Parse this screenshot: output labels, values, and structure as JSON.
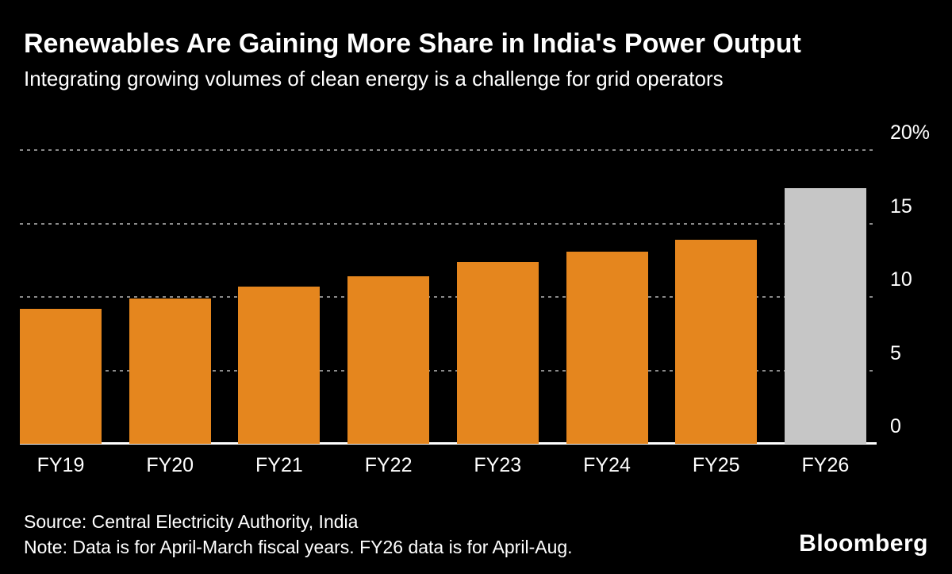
{
  "header": {
    "title": "Renewables Are Gaining More Share in India's Power Output",
    "subtitle": "Integrating growing volumes of clean energy is a challenge for grid operators"
  },
  "footer": {
    "source": "Source: Central Electricity Authority, India",
    "note": "Note: Data is for April-March fiscal years. FY26 data is for April-Aug.",
    "brand": "Bloomberg"
  },
  "colors": {
    "background": "#000000",
    "bar_orange": "#E5861E",
    "bar_gray": "#C6C6C6",
    "gridline": "#8A8A8A",
    "baseline": "#FFFFFF",
    "text": "#FFFFFF"
  },
  "chart_data": {
    "type": "bar",
    "title": "Renewables Are Gaining More Share in India's Power Output",
    "subtitle": "Integrating growing volumes of clean energy is a challenge for grid operators",
    "categories": [
      "FY19",
      "FY20",
      "FY21",
      "FY22",
      "FY23",
      "FY24",
      "FY25",
      "FY26"
    ],
    "values": [
      9.2,
      9.9,
      10.7,
      11.4,
      12.4,
      13.1,
      13.9,
      17.4
    ],
    "bar_colors": [
      "#E5861E",
      "#E5861E",
      "#E5861E",
      "#E5861E",
      "#E5861E",
      "#E5861E",
      "#E5861E",
      "#C6C6C6"
    ],
    "highlight_category": "FY26",
    "xlabel": "",
    "ylabel": "",
    "ylim": [
      0,
      20
    ],
    "yticks": [
      0,
      5,
      10,
      15,
      20
    ],
    "ytick_labels": [
      "0",
      "5",
      "10",
      "15",
      "20%"
    ],
    "grid": "dashed-horizontal",
    "legend": "none",
    "units": "percent share of power output"
  }
}
